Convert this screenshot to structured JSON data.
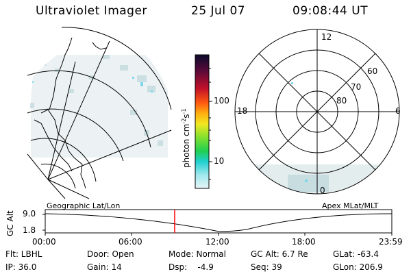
{
  "header": {
    "instrument": "Ultraviolet Imager",
    "date": "25 Jul 07",
    "time": "09:08:44 UT"
  },
  "colorbar": {
    "unit_label": "photon cm",
    "unit_sup1": "-2",
    "unit_mid": "s",
    "unit_sup2": "-1",
    "ticks": [
      "100",
      "10"
    ]
  },
  "polar_plot": {
    "clock_labels": {
      "top": "12",
      "left": "18",
      "right": "6",
      "bottom": "0"
    },
    "lat_labels": [
      "60",
      "70",
      "80"
    ]
  },
  "timeline": {
    "y_axis_label": "GC Alt",
    "y_ticks": [
      "9.0",
      "1.8"
    ],
    "left_caption": "Geographic Lat/Lon",
    "right_caption": "Apex MLat/MLT",
    "x_ticks": [
      "00:00",
      "06:00",
      "12:00",
      "18:00",
      "23:59"
    ],
    "current_time": "09:08:44",
    "marker_color": "#ff0000"
  },
  "status": {
    "row1": [
      {
        "text": "Flt: LBHL"
      },
      {
        "text": "Door: Open"
      },
      {
        "text": "Mode: Normal"
      },
      {
        "text": "GC Alt: 6.7 Re"
      },
      {
        "text": "GLat: -63.4"
      }
    ],
    "row2": [
      {
        "text": "IP: 36.0"
      },
      {
        "text": "Gain: 14"
      },
      {
        "text": "Dsp:    -4.9"
      },
      {
        "text": "Seq: 39"
      },
      {
        "text": "GLon: 206.9"
      }
    ]
  }
}
